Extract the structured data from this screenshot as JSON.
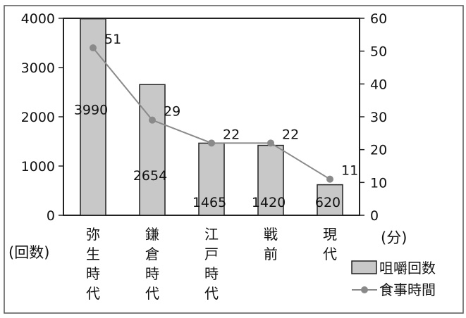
{
  "chart_data": {
    "type": "bar",
    "categories": [
      [
        "弥",
        "生",
        "時",
        "代"
      ],
      [
        "鎌",
        "倉",
        "時",
        "代"
      ],
      [
        "江",
        "戸",
        "時",
        "代"
      ],
      [
        "戦",
        "前"
      ],
      [
        "現",
        "代"
      ]
    ],
    "series": [
      {
        "name": "咀嚼回数",
        "type": "bar",
        "axis": "left",
        "values": [
          3990,
          2654,
          1465,
          1420,
          620
        ],
        "color": "#c8c8c8"
      },
      {
        "name": "食事時間",
        "type": "line",
        "axis": "right",
        "values": [
          51,
          29,
          22,
          22,
          11
        ],
        "color": "#8a8a8a"
      }
    ],
    "y_left": {
      "min": 0,
      "max": 4000,
      "ticks": [
        0,
        1000,
        2000,
        3000,
        4000
      ],
      "unit_label": "(回数)"
    },
    "y_right": {
      "min": 0,
      "max": 60,
      "ticks": [
        0,
        10,
        20,
        30,
        40,
        50,
        60
      ],
      "unit_label": "(分)"
    },
    "grid": false,
    "legend_position": "bottom-right"
  }
}
